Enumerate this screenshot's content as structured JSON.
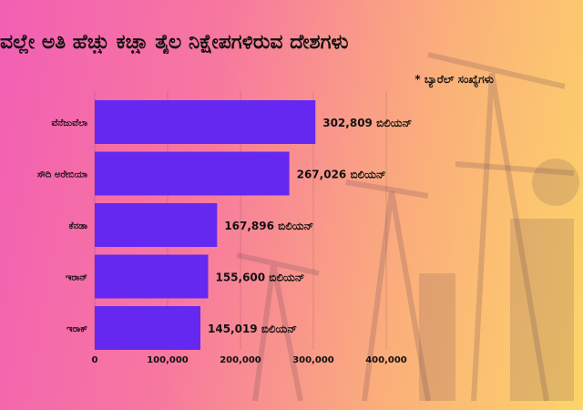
{
  "title": "ವಲ್ಲೇ ಅತಿ ಹೆಚ್ಚು ಕಚ್ಚಾ ತೈಲ ನಿಕ್ಷೇಪಗಳಿರುವ ದೇಶಗಳು",
  "note": "* ಬ್ಯಾರೆಲ್ ಸಂಖ್ಯೆಗಳು",
  "colors": {
    "bar": "#6428f0",
    "text": "#111111"
  },
  "chart_data": {
    "type": "bar",
    "orientation": "horizontal",
    "categories": [
      "ವೆನೆಜುವೆಲಾ",
      "ಸೌದಿ ಅರೇಬಿಯಾ",
      "ಕೆನಡಾ",
      "ಇರಾನ್",
      "ಇರಾಕ್"
    ],
    "values": [
      302809,
      267026,
      167896,
      155600,
      145019
    ],
    "value_labels": [
      "302,809 ಬಿಲಿಯನ್",
      "267,026 ಬಿಲಿಯನ್",
      "167,896 ಬಿಲಿಯನ್",
      "155,600 ಬಿಲಿಯನ್",
      "145,019 ಬಿಲಿಯನ್"
    ],
    "x_ticks": [
      0,
      100000,
      200000,
      300000,
      400000
    ],
    "x_tick_labels": [
      "0",
      "100,000",
      "200,000",
      "300,000",
      "400,000"
    ],
    "xlim": [
      0,
      400000
    ],
    "grid": true,
    "legend": "none"
  }
}
